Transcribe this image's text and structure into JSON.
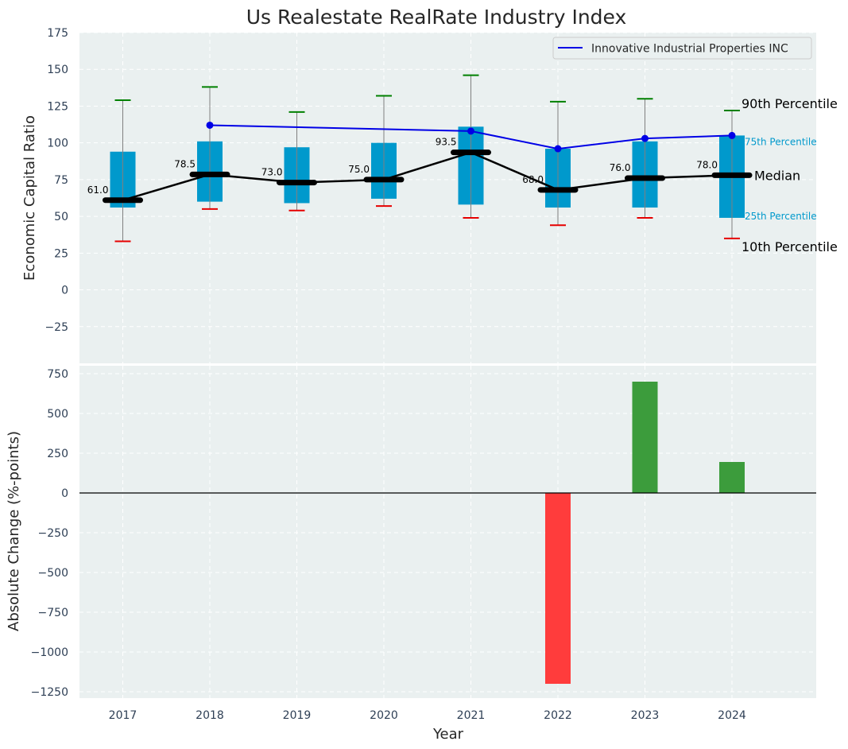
{
  "chart_data": [
    {
      "type": "box",
      "title": "Us Realestate RealRate Industry Index",
      "ylabel": "Economic Capital Ratio",
      "ylim": [
        -50,
        175
      ],
      "yticks": [
        -25,
        0,
        25,
        50,
        75,
        100,
        125,
        150,
        175
      ],
      "ytick_labels": [
        "−25",
        "0",
        "25",
        "50",
        "75",
        "100",
        "125",
        "150",
        "175"
      ],
      "grid": true,
      "legend_position": "top-right",
      "categories": [
        "2017",
        "2018",
        "2019",
        "2020",
        "2021",
        "2022",
        "2023",
        "2024"
      ],
      "p10": [
        33,
        55,
        54,
        57,
        49,
        44,
        49,
        35
      ],
      "p25": [
        56,
        60,
        59,
        62,
        58,
        56,
        56,
        49
      ],
      "median": [
        61.0,
        78.5,
        73.0,
        75.0,
        93.5,
        68.0,
        76.0,
        78.0
      ],
      "median_labels": [
        "61.0",
        "78.5",
        "73.0",
        "75.0",
        "93.5",
        "68.0",
        "76.0",
        "78.0"
      ],
      "p75": [
        94,
        101,
        97,
        100,
        111,
        96,
        101,
        105
      ],
      "p90": [
        129,
        138,
        121,
        132,
        146,
        128,
        130,
        122
      ],
      "series": [
        {
          "name": "Innovative Industrial Properties INC",
          "x": [
            "2018",
            "2021",
            "2022",
            "2023",
            "2024"
          ],
          "values": [
            112,
            108,
            96,
            103,
            105
          ],
          "color": "#0000e6"
        }
      ],
      "annotations": {
        "p90": "90th Percentile",
        "p75": "75th Percentile",
        "median": "Median",
        "p25": "25th Percentile",
        "p10": "10th Percentile"
      },
      "colors": {
        "box": "#0099cc",
        "median_line": "#000000",
        "p90_cap": "#008000",
        "p10_cap": "#e60000",
        "whisker": "#808080",
        "background": "#eaf0f0"
      }
    },
    {
      "type": "bar",
      "xlabel": "Year",
      "ylabel": "Absolute Change (%-points)",
      "ylim": [
        -1290,
        800
      ],
      "yticks": [
        -1250,
        -1000,
        -750,
        -500,
        -250,
        0,
        250,
        500,
        750
      ],
      "ytick_labels": [
        "−1250",
        "−1000",
        "−750",
        "−500",
        "−250",
        "0",
        "250",
        "500",
        "750"
      ],
      "grid": true,
      "categories": [
        "2017",
        "2018",
        "2019",
        "2020",
        "2021",
        "2022",
        "2023",
        "2024"
      ],
      "values": [
        0,
        0,
        0,
        0,
        0,
        -1200,
        700,
        195
      ],
      "colors": {
        "positive": "#3c9c3c",
        "negative": "#ff3c3c"
      }
    }
  ]
}
